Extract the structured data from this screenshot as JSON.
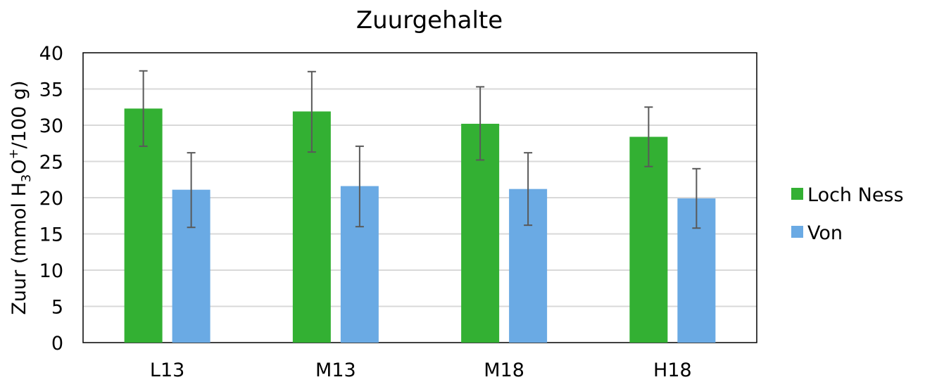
{
  "chart_data": {
    "type": "bar",
    "title": "Zuurgehalte",
    "ylabel_prefix": "Zuur (mmol H",
    "ylabel_sub": "3",
    "ylabel_mid": "O",
    "ylabel_sup": "+",
    "ylabel_suffix": "/100 g)",
    "xlabel": "",
    "categories": [
      "L13",
      "M13",
      "M18",
      "H18"
    ],
    "ylim": [
      0,
      40
    ],
    "yticks": [
      0,
      5,
      10,
      15,
      20,
      25,
      30,
      35,
      40
    ],
    "grid": true,
    "legend_position": "right",
    "series": [
      {
        "name": "Loch Ness",
        "color": "#33b033",
        "values": [
          32.3,
          31.9,
          30.2,
          28.4
        ],
        "error_low": [
          27.1,
          26.3,
          25.2,
          24.3
        ],
        "error_high": [
          37.5,
          37.4,
          35.3,
          32.5
        ]
      },
      {
        "name": "Von",
        "color": "#6aaae4",
        "values": [
          21.1,
          21.6,
          21.2,
          19.9
        ],
        "error_low": [
          15.9,
          16.0,
          16.2,
          15.8
        ],
        "error_high": [
          26.2,
          27.1,
          26.2,
          24.0
        ]
      }
    ]
  }
}
